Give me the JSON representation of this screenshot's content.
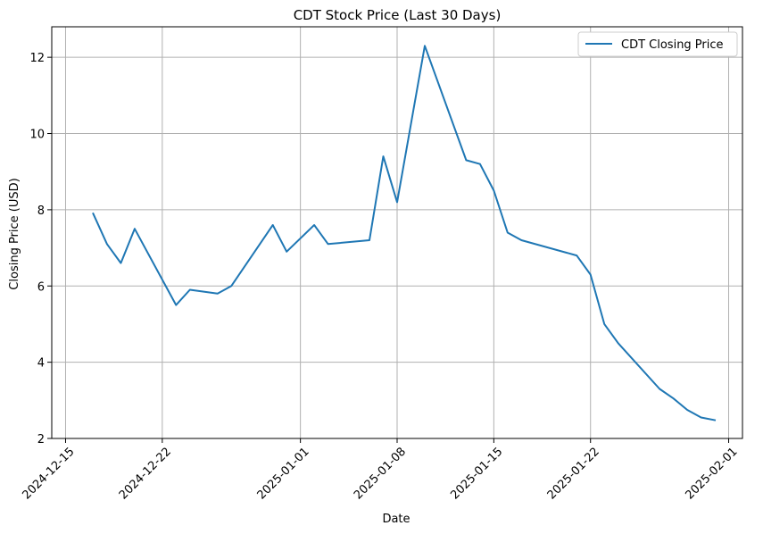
{
  "chart_data": {
    "type": "line",
    "title": "CDT Stock Price (Last 30 Days)",
    "xlabel": "Date",
    "ylabel": "Closing Price (USD)",
    "grid": true,
    "legend_position": "top-right",
    "x_tick_labels": [
      "2024-12-15",
      "2024-12-22",
      "2025-01-01",
      "2025-01-08",
      "2025-01-15",
      "2025-01-22",
      "2025-02-01"
    ],
    "y_tick_labels": [
      "2",
      "4",
      "6",
      "8",
      "10",
      "12"
    ],
    "xlim": [
      "2024-12-14",
      "2025-02-02"
    ],
    "ylim": [
      2.0,
      12.8
    ],
    "series": [
      {
        "name": "CDT Closing Price",
        "color": "#1f77b4",
        "x": [
          "2024-12-17",
          "2024-12-18",
          "2024-12-19",
          "2024-12-20",
          "2024-12-23",
          "2024-12-24",
          "2024-12-26",
          "2024-12-27",
          "2024-12-30",
          "2024-12-31",
          "2025-01-02",
          "2025-01-03",
          "2025-01-06",
          "2025-01-07",
          "2025-01-08",
          "2025-01-10",
          "2025-01-13",
          "2025-01-14",
          "2025-01-15",
          "2025-01-16",
          "2025-01-17",
          "2025-01-21",
          "2025-01-22",
          "2025-01-23",
          "2025-01-24",
          "2025-01-27",
          "2025-01-28",
          "2025-01-29",
          "2025-01-30",
          "2025-01-31"
        ],
        "values": [
          7.9,
          7.1,
          6.6,
          7.5,
          5.5,
          5.9,
          5.8,
          6.0,
          7.6,
          6.9,
          7.6,
          7.1,
          7.2,
          9.4,
          8.2,
          12.3,
          9.3,
          9.2,
          8.5,
          7.4,
          7.2,
          6.8,
          6.3,
          5.0,
          4.5,
          3.3,
          3.05,
          2.75,
          2.55,
          2.48
        ]
      }
    ]
  }
}
